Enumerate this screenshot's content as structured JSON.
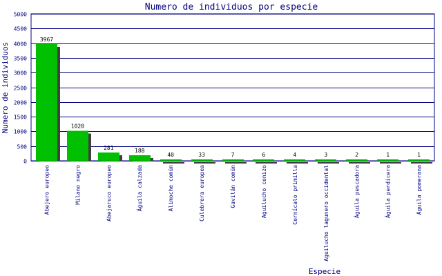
{
  "chart_data": {
    "type": "bar",
    "title": "Numero de individuos por especie",
    "xlabel": "Especie",
    "ylabel": "Numero de individuos",
    "ylim": [
      0,
      5000
    ],
    "yticks": [
      0,
      500,
      1000,
      1500,
      2000,
      2500,
      3000,
      3500,
      4000,
      4500,
      5000
    ],
    "grid": true,
    "categories": [
      "Abejero europeo",
      "Milano negro",
      "Abejaruco europeo",
      "Águila calzada",
      "Alimoche común",
      "Culebrera europea",
      "Gavilán común",
      "Aguilucho cenizo",
      "Cernícalo primilla",
      "Aguilucho lagunero occidental",
      "Águila pescadora",
      "Águila perdicera",
      "Águila pomerana"
    ],
    "values": [
      3967,
      1020,
      281,
      188,
      40,
      33,
      7,
      6,
      4,
      3,
      2,
      1,
      1
    ],
    "value_labels": [
      "3967",
      "1020",
      "281",
      "188",
      "40",
      "33",
      "7",
      "6",
      "4",
      "3",
      "2",
      "1",
      "1"
    ],
    "colors": {
      "bar": "#00c000",
      "bar_shadow": "#404040",
      "grid": "#000080",
      "axis_text": "#000080"
    }
  }
}
